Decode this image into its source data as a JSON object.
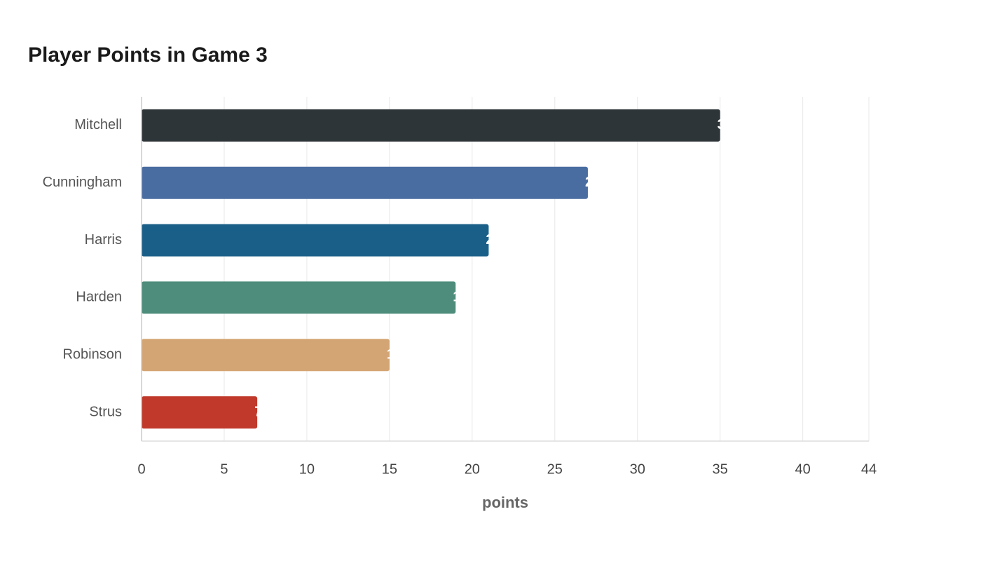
{
  "chart_data": {
    "type": "bar",
    "orientation": "horizontal",
    "title": "Player Points in Game 3",
    "categories": [
      "Mitchell",
      "Cunningham",
      "Harris",
      "Harden",
      "Robinson",
      "Strus"
    ],
    "values": [
      35,
      27,
      21,
      19,
      15,
      7
    ],
    "colors": [
      "#2e3538",
      "#4a6da1",
      "#1a5f88",
      "#4e8c7b",
      "#d4a574",
      "#c0392b"
    ],
    "xlim": [
      0,
      44
    ],
    "xticks": [
      0,
      5,
      10,
      15,
      20,
      25,
      30,
      35,
      40,
      44
    ],
    "x_label": "points",
    "grid": true
  }
}
